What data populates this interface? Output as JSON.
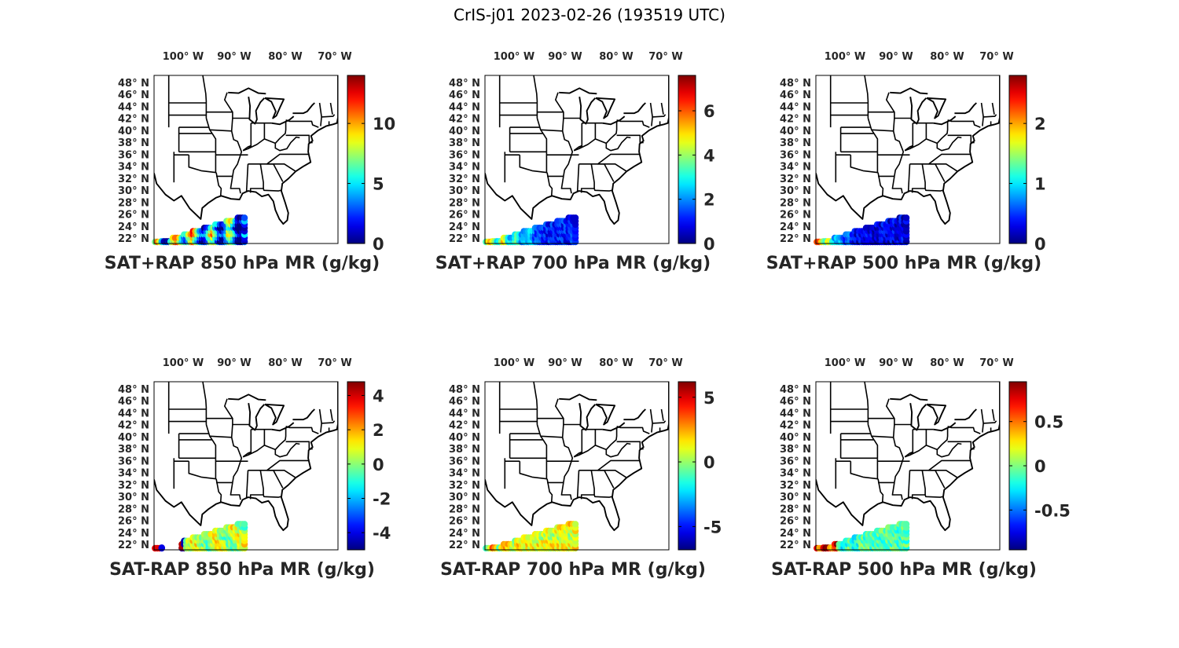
{
  "figure": {
    "title": "CrIS-j01 2023-02-26 (193519 UTC)"
  },
  "lon_labels": [
    "100° W",
    "90° W",
    "80° W",
    "70° W"
  ],
  "lat_labels": [
    "48° N",
    "46° N",
    "44° N",
    "42° N",
    "40° N",
    "38° N",
    "36° N",
    "34° N",
    "32° N",
    "30° N",
    "28° N",
    "26° N",
    "24° N",
    "22° N"
  ],
  "map_extent": {
    "lon": [
      -107,
      -70
    ],
    "lat": [
      22,
      49.5
    ]
  },
  "colormap": "jet",
  "panels": [
    {
      "title": "SAT+RAP 850 hPa MR (g/kg)",
      "colorbar": {
        "min": 0,
        "max": 14,
        "ticks": [
          0,
          5,
          10
        ],
        "tick_labels": [
          "0",
          "5",
          "10"
        ]
      },
      "field": "sum850"
    },
    {
      "title": "SAT+RAP 700 hPa MR (g/kg)",
      "colorbar": {
        "min": 0,
        "max": 7.6,
        "ticks": [
          0,
          2,
          4,
          6
        ],
        "tick_labels": [
          "0",
          "2",
          "4",
          "6"
        ]
      },
      "field": "sum700"
    },
    {
      "title": "SAT+RAP 500 hPa MR (g/kg)",
      "colorbar": {
        "min": 0,
        "max": 2.8,
        "ticks": [
          0,
          1,
          2
        ],
        "tick_labels": [
          "0",
          "1",
          "2"
        ]
      },
      "field": "sum500"
    },
    {
      "title": "SAT-RAP 850 hPa MR (g/kg)",
      "colorbar": {
        "min": -5,
        "max": 4.8,
        "ticks": [
          -4,
          -2,
          0,
          2,
          4
        ],
        "tick_labels": [
          "-4",
          "-2",
          "0",
          "2",
          "4"
        ]
      },
      "field": "diff850"
    },
    {
      "title": "SAT-RAP 700 hPa MR (g/kg)",
      "colorbar": {
        "min": -6.8,
        "max": 6.2,
        "ticks": [
          -5,
          0,
          5
        ],
        "tick_labels": [
          "-5",
          "0",
          "5"
        ]
      },
      "field": "diff700"
    },
    {
      "title": "SAT-RAP 500 hPa MR (g/kg)",
      "colorbar": {
        "min": -0.95,
        "max": 0.95,
        "ticks": [
          -0.5,
          0,
          0.5
        ],
        "tick_labels": [
          "-0.5",
          "0",
          "0.5"
        ]
      },
      "field": "diff500"
    }
  ]
}
